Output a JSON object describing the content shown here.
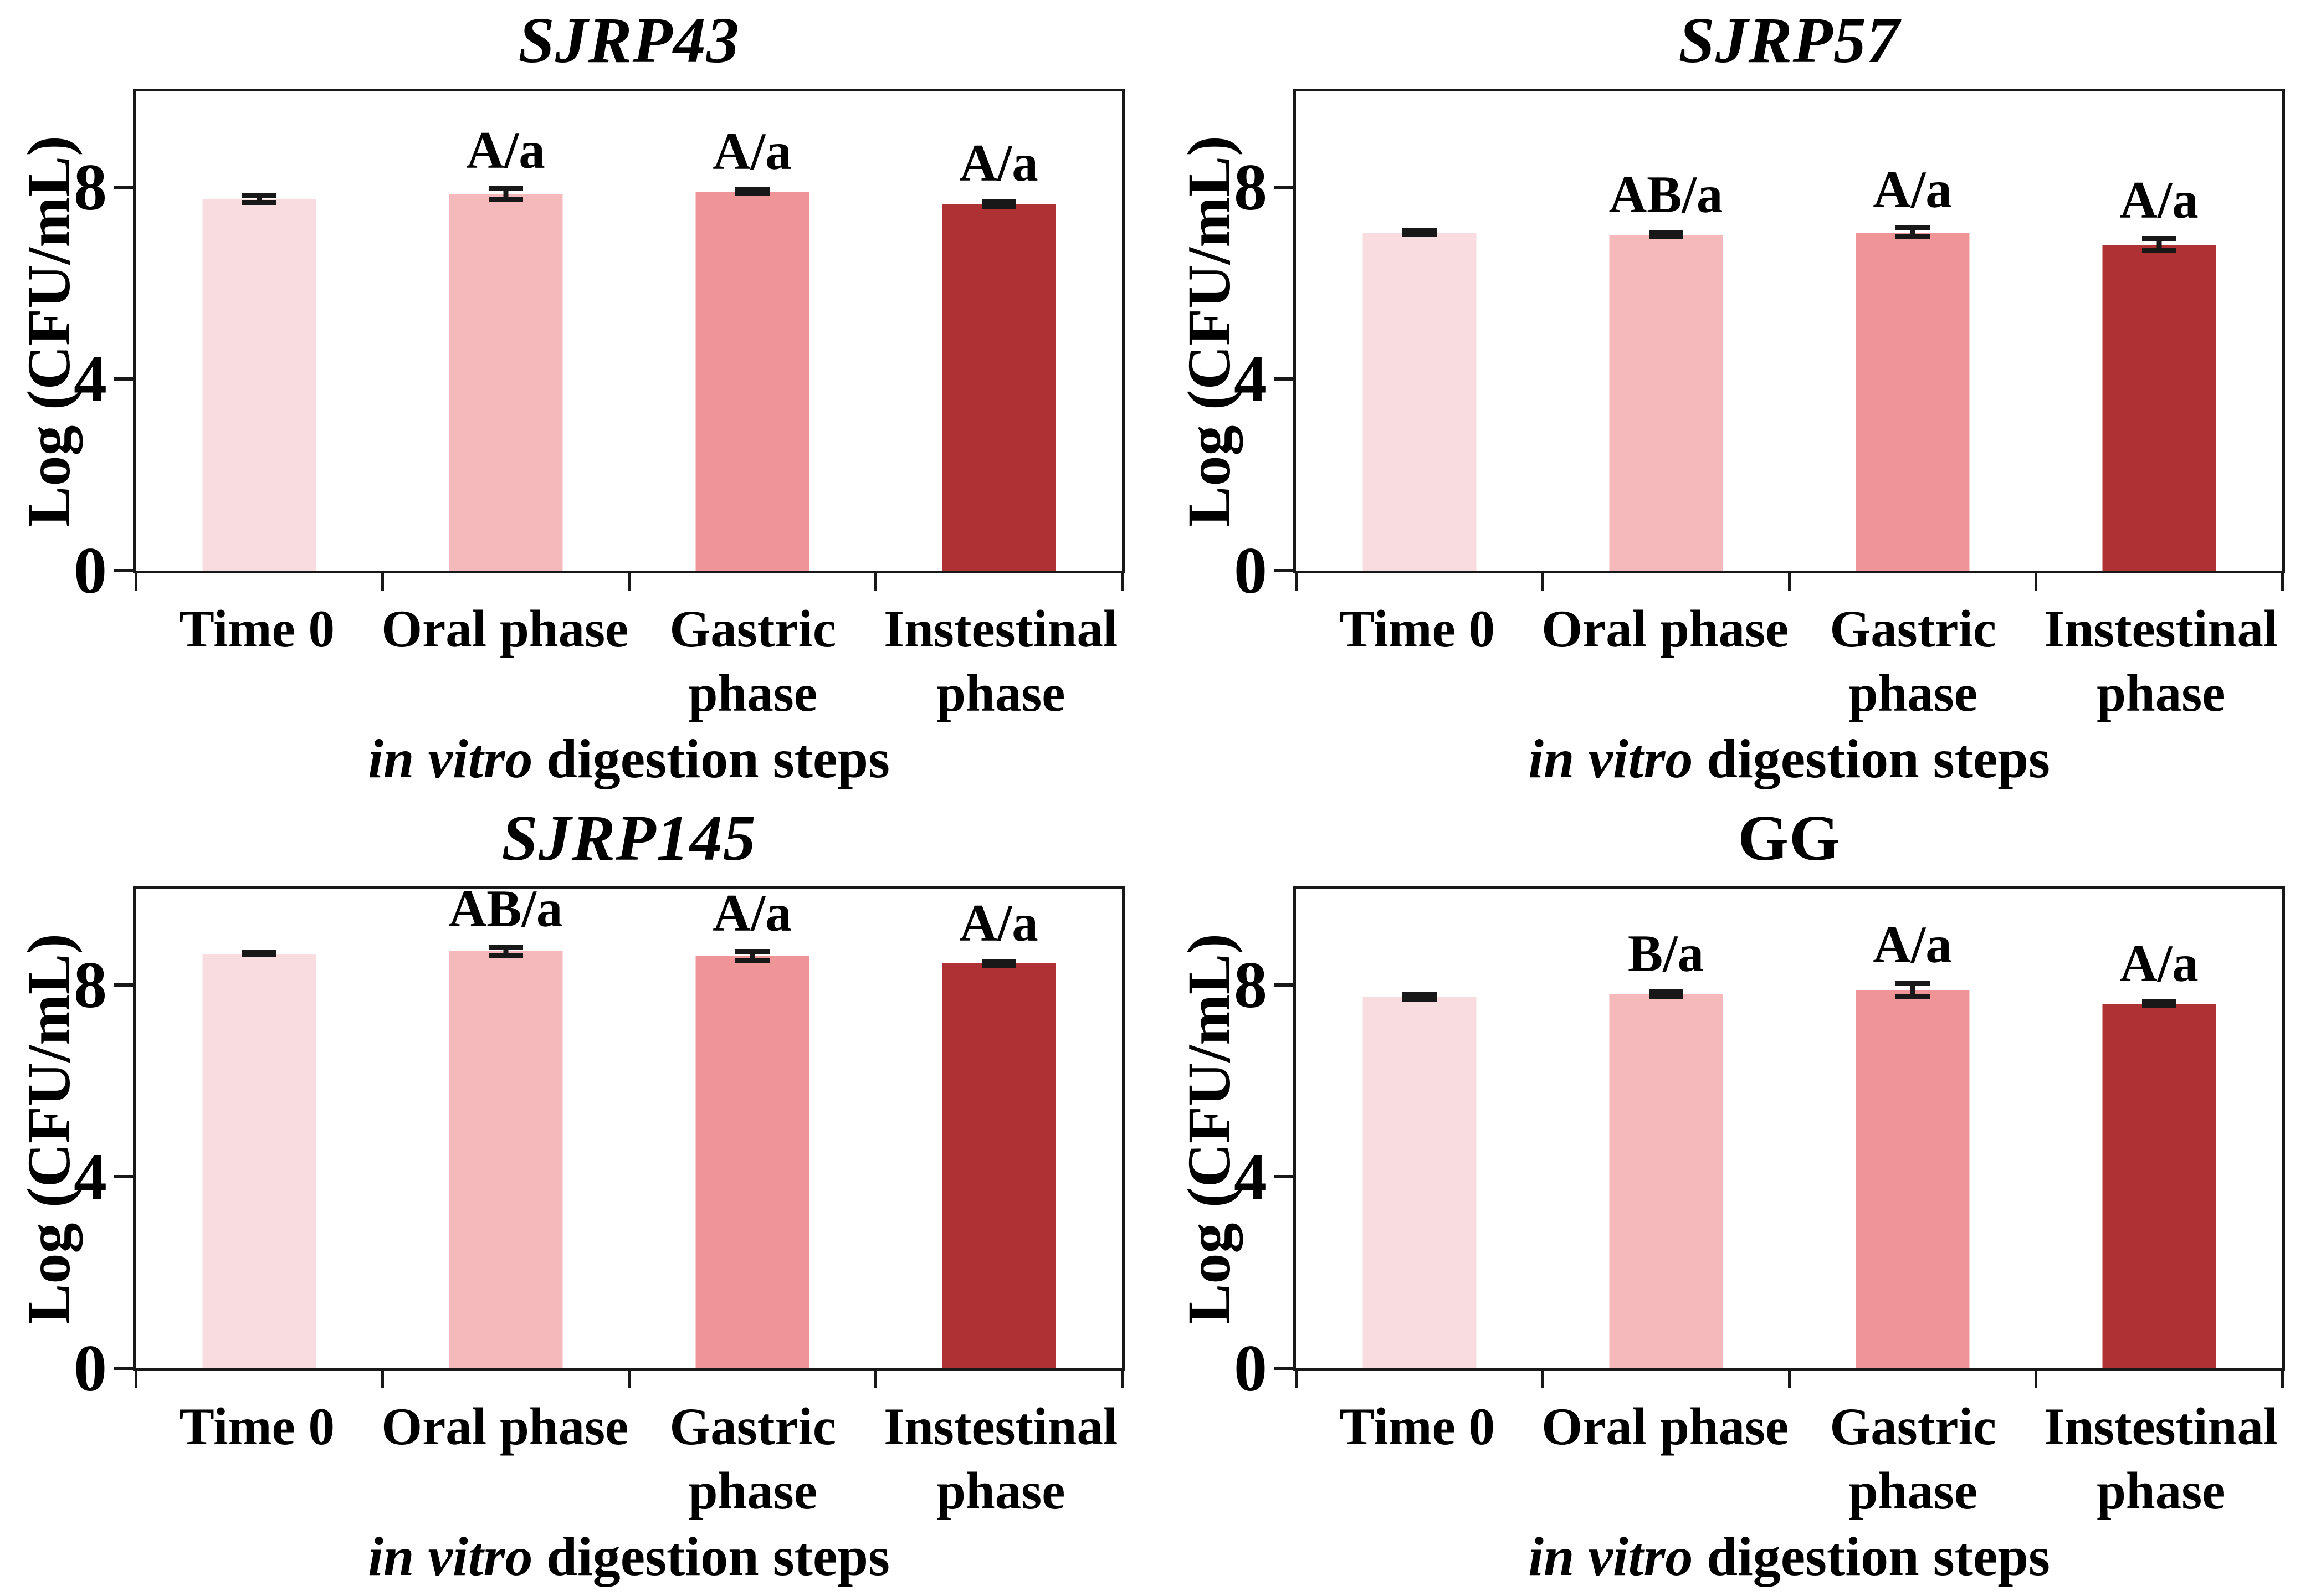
{
  "figure": {
    "ylabel": "Log (CFU/mL)",
    "xlabel": "in vitro digestion steps",
    "xlabel_italic": "in vitro",
    "xlabel_rest": " digestion steps",
    "axis_color": "#181818",
    "background_color": "#ffffff"
  },
  "chart_data": [
    {
      "type": "bar",
      "title": "SJRP43",
      "title_italic": true,
      "categories": [
        "Time 0",
        "Oral phase",
        "Gastric\nphase",
        "Instestinal\nphase"
      ],
      "values": [
        7.75,
        7.85,
        7.9,
        7.65
      ],
      "errors": [
        0.07,
        0.12,
        0.04,
        0.05
      ],
      "annotations": [
        "",
        "A/a",
        "A/a",
        "A/a"
      ],
      "bar_colors": [
        "#f9dce0",
        "#f5b9bc",
        "#ef9598",
        "#b03134"
      ],
      "ylabel": "Log (CFU/mL)",
      "xlabel": "in vitro digestion steps",
      "xlabel_italic": "in vitro",
      "xlabel_rest": " digestion steps",
      "yticks": [
        0,
        4,
        8
      ],
      "ylim": [
        0,
        10
      ],
      "grid": false,
      "legend": false
    },
    {
      "type": "bar",
      "title": "SJRP57",
      "title_italic": true,
      "categories": [
        "Time 0",
        "Oral phase",
        "Gastric\nphase",
        "Instestinal\nphase"
      ],
      "values": [
        7.05,
        7.0,
        7.05,
        6.8
      ],
      "errors": [
        0.04,
        0.04,
        0.09,
        0.12
      ],
      "annotations": [
        "",
        "AB/a",
        "A/a",
        "A/a"
      ],
      "bar_colors": [
        "#f9dce0",
        "#f5b9bc",
        "#ef9598",
        "#b03134"
      ],
      "ylabel": "Log (CFU/mL)",
      "xlabel": "in vitro digestion steps",
      "xlabel_italic": "in vitro",
      "xlabel_rest": " digestion steps",
      "yticks": [
        0,
        4,
        8
      ],
      "ylim": [
        0,
        10
      ],
      "grid": false,
      "legend": false
    },
    {
      "type": "bar",
      "title": "SJRP145",
      "title_italic": true,
      "categories": [
        "Time 0",
        "Oral phase",
        "Gastric\nphase",
        "Instestinal\nphase"
      ],
      "values": [
        8.65,
        8.7,
        8.6,
        8.45
      ],
      "errors": [
        0.03,
        0.09,
        0.09,
        0.04
      ],
      "annotations": [
        "",
        "AB/a",
        "A/a",
        "A/a"
      ],
      "bar_colors": [
        "#f9dce0",
        "#f5b9bc",
        "#ef9598",
        "#b03134"
      ],
      "ylabel": "Log (CFU/mL)",
      "xlabel": "in vitro digestion steps",
      "xlabel_italic": "in vitro",
      "xlabel_rest": " digestion steps",
      "yticks": [
        0,
        4,
        8
      ],
      "ylim": [
        0,
        10
      ],
      "grid": false,
      "legend": false
    },
    {
      "type": "bar",
      "title": "GG",
      "title_italic": false,
      "categories": [
        "Time 0",
        "Oral phase",
        "Gastric\nphase",
        "Instestinal\nphase"
      ],
      "values": [
        7.75,
        7.8,
        7.9,
        7.6
      ],
      "errors": [
        0.05,
        0.05,
        0.14,
        0.04
      ],
      "annotations": [
        "",
        "B/a",
        "A/a",
        "A/a"
      ],
      "bar_colors": [
        "#f9dce0",
        "#f5b9bc",
        "#ef9598",
        "#b03134"
      ],
      "ylabel": "Log (CFU/mL)",
      "xlabel": "in vitro digestion steps",
      "xlabel_italic": "in vitro",
      "xlabel_rest": " digestion steps",
      "yticks": [
        0,
        4,
        8
      ],
      "ylim": [
        0,
        10
      ],
      "grid": false,
      "legend": false
    }
  ]
}
